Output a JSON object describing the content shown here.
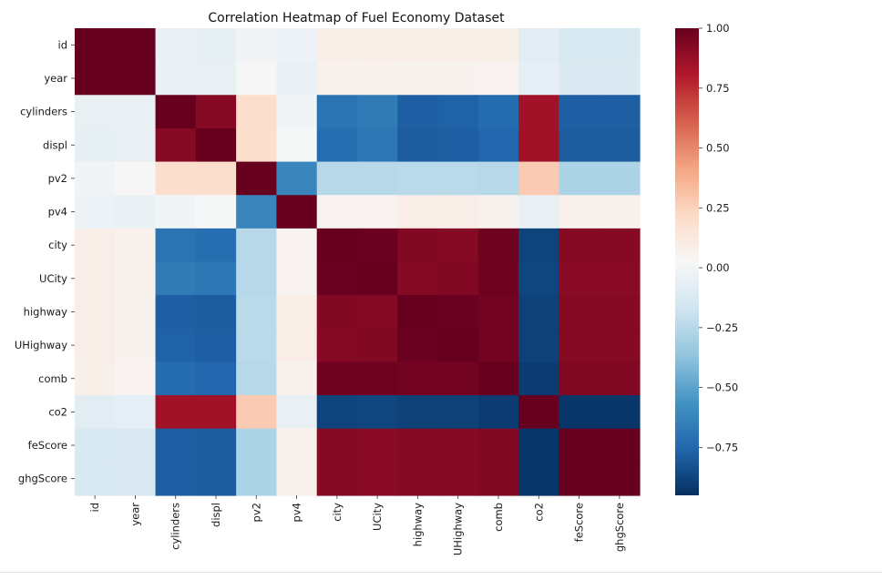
{
  "chart_data": {
    "type": "heatmap",
    "title": "Correlation Heatmap of Fuel Economy Dataset",
    "row_labels": [
      "id",
      "year",
      "cylinders",
      "displ",
      "pv2",
      "pv4",
      "city",
      "UCity",
      "highway",
      "UHighway",
      "comb",
      "co2",
      "feScore",
      "ghgScore"
    ],
    "col_labels": [
      "id",
      "year",
      "cylinders",
      "displ",
      "pv2",
      "pv4",
      "city",
      "UCity",
      "highway",
      "UHighway",
      "comb",
      "co2",
      "feScore",
      "ghgScore"
    ],
    "values": [
      [
        1.0,
        1.0,
        -0.05,
        -0.06,
        -0.01,
        -0.03,
        0.09,
        0.09,
        0.09,
        0.09,
        0.08,
        -0.09,
        -0.13,
        -0.13
      ],
      [
        1.0,
        1.0,
        -0.04,
        -0.05,
        0.03,
        -0.04,
        0.07,
        0.07,
        0.06,
        0.06,
        0.05,
        -0.07,
        -0.12,
        -0.12
      ],
      [
        -0.05,
        -0.04,
        1.0,
        0.92,
        0.2,
        -0.01,
        -0.7,
        -0.67,
        -0.78,
        -0.77,
        -0.73,
        0.85,
        -0.78,
        -0.78
      ],
      [
        -0.06,
        -0.05,
        0.92,
        1.0,
        0.2,
        0.02,
        -0.72,
        -0.68,
        -0.79,
        -0.78,
        -0.75,
        0.85,
        -0.79,
        -0.79
      ],
      [
        -0.01,
        0.03,
        0.2,
        0.2,
        1.0,
        -0.62,
        -0.25,
        -0.25,
        -0.24,
        -0.24,
        -0.25,
        0.28,
        -0.28,
        -0.28
      ],
      [
        -0.03,
        -0.04,
        -0.01,
        0.02,
        -0.62,
        1.0,
        0.05,
        0.05,
        0.09,
        0.09,
        0.06,
        -0.05,
        0.07,
        0.07
      ],
      [
        0.09,
        0.07,
        -0.7,
        -0.72,
        -0.25,
        0.05,
        1.0,
        0.99,
        0.93,
        0.92,
        0.98,
        -0.88,
        0.92,
        0.92
      ],
      [
        0.09,
        0.07,
        -0.67,
        -0.68,
        -0.25,
        0.05,
        0.99,
        1.0,
        0.92,
        0.93,
        0.98,
        -0.87,
        0.91,
        0.91
      ],
      [
        0.09,
        0.06,
        -0.78,
        -0.79,
        -0.24,
        0.09,
        0.93,
        0.92,
        1.0,
        0.99,
        0.97,
        -0.89,
        0.92,
        0.92
      ],
      [
        0.09,
        0.06,
        -0.77,
        -0.78,
        -0.24,
        0.09,
        0.92,
        0.93,
        0.99,
        1.0,
        0.97,
        -0.89,
        0.92,
        0.92
      ],
      [
        0.08,
        0.05,
        -0.73,
        -0.75,
        -0.25,
        0.06,
        0.98,
        0.98,
        0.97,
        0.97,
        1.0,
        -0.91,
        0.93,
        0.93
      ],
      [
        -0.09,
        -0.07,
        0.85,
        0.85,
        0.28,
        -0.05,
        -0.88,
        -0.87,
        -0.89,
        -0.89,
        -0.91,
        1.0,
        -0.93,
        -0.93
      ],
      [
        -0.13,
        -0.12,
        -0.78,
        -0.79,
        -0.28,
        0.07,
        0.92,
        0.91,
        0.92,
        0.92,
        0.93,
        -0.93,
        1.0,
        1.0
      ],
      [
        -0.13,
        -0.12,
        -0.78,
        -0.79,
        -0.28,
        0.07,
        0.92,
        0.91,
        0.92,
        0.92,
        0.93,
        -0.93,
        1.0,
        1.0
      ]
    ],
    "colormap": "RdBu_r",
    "vmin": -0.95,
    "vmax": 1.0,
    "colorbar_ticks": [
      1.0,
      0.75,
      0.5,
      0.25,
      0.0,
      -0.25,
      -0.5,
      -0.75
    ],
    "colorbar_tick_labels": [
      "1.00",
      "0.75",
      "0.50",
      "0.25",
      "0.00",
      "−0.25",
      "−0.50",
      "−0.75"
    ],
    "colorbar_placement": "right",
    "grid": false,
    "xlabel": "",
    "ylabel": ""
  }
}
